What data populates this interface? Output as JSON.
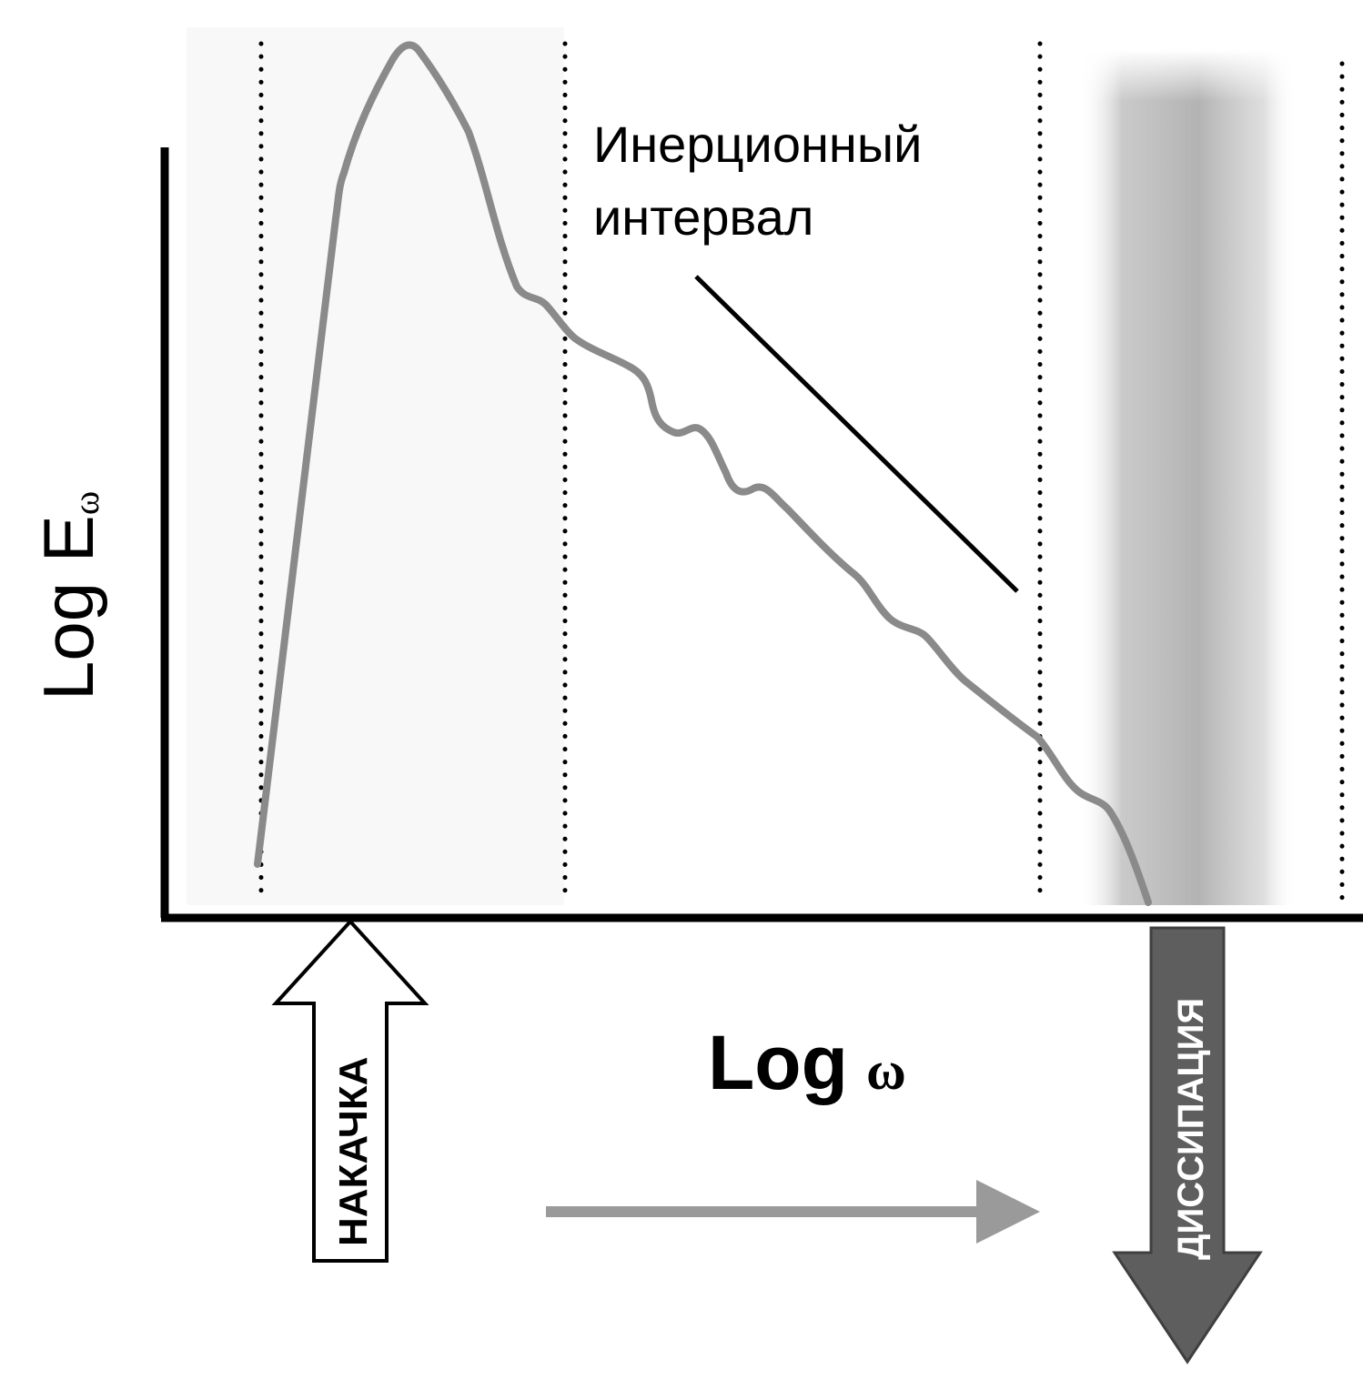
{
  "figure": {
    "y_axis_label_main": "Log E",
    "y_axis_label_sub": "ω",
    "x_axis_label_main": "Log",
    "x_axis_label_sub": "ω",
    "inertial_label_line1": "Инерционный",
    "inertial_label_line2": "интервал",
    "pump_label": "НАКАЧКА",
    "dissipation_label": "ДИССИПАЦИЯ"
  },
  "colors": {
    "curve": "#8a8a8a",
    "axes": "#000000",
    "slope_line": "#000000",
    "dotted_lines": "#000000",
    "transfer_arrow": "#9a9a9a",
    "dissipation_arrow": "#5e5e5e",
    "dissipation_band": "#bdbdbd",
    "pump_arrow_fill": "#ffffff",
    "pump_arrow_stroke": "#000000"
  }
}
